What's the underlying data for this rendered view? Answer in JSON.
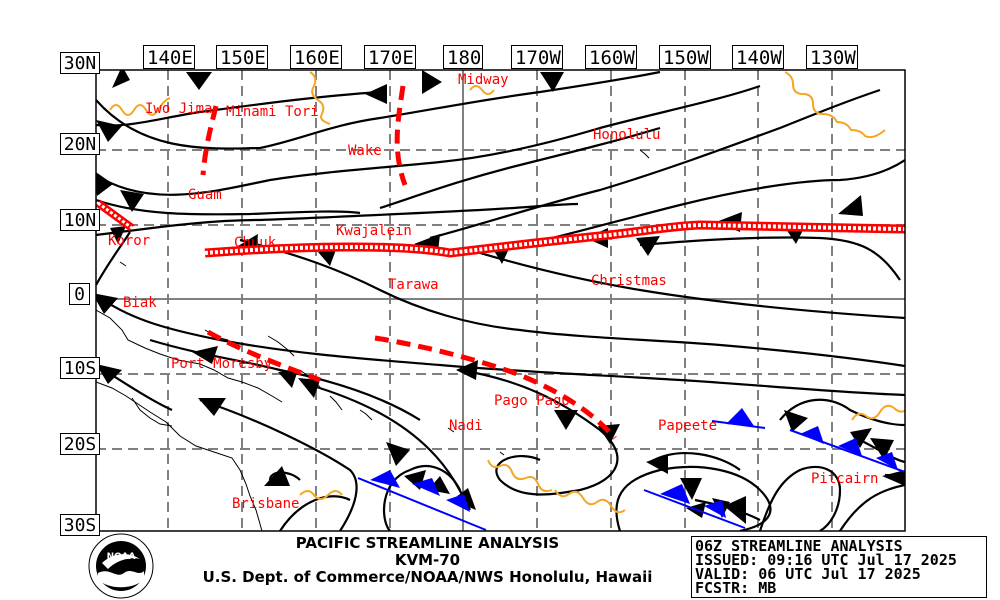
{
  "chart_title": "PACIFIC STREAMLINE ANALYSIS",
  "station": "KVM-70",
  "agency": "U.S. Dept. of Commerce/NOAA/NWS Honolulu, Hawaii",
  "logo": {
    "text": "NOAA",
    "ring_text": "NATIONAL OCEANIC AND ATMOSPHERIC ADMINISTRATION · U.S. DEPARTMENT OF COMMERCE"
  },
  "info": {
    "analysis": "06Z STREAMLINE ANALYSIS",
    "issued": "ISSUED: 09:16 UTC Jul 17 2025",
    "valid": "VALID: 06 UTC Jul 17 2025",
    "forecaster": "FCSTR: MB"
  },
  "longitude_labels": [
    "140E",
    "150E",
    "160E",
    "170E",
    "180",
    "170W",
    "160W",
    "150W",
    "140W",
    "130W"
  ],
  "latitude_labels": [
    "30N",
    "20N",
    "10N",
    "0",
    "10S",
    "20S",
    "30S"
  ],
  "places": [
    "Iwo Jima",
    "Minami Tori",
    "Midway",
    "Wake",
    "Honolulu",
    "Guam",
    "Koror",
    "Chuuk",
    "Kwajalein",
    "Tarawa",
    "Christmas",
    "Biak",
    "Port Moresby",
    "Pago Pago",
    "Papeete",
    "Nadi",
    "Pitcairn",
    "Brisbane"
  ],
  "colors": {
    "streamline": "#000000",
    "trough": "#ff0000",
    "itcz": "#ff0000",
    "ridge": "#f5a623",
    "shear_line": "#0000ff",
    "grid": "#808080",
    "place_label": "#ff0000",
    "coastline": "#000000"
  },
  "features": {
    "itcz": "double red band along about 5N-9N",
    "troughs": [
      "near 140E-145E north of Guam",
      "near 170E north of Wake",
      "10S-20S from 160W to 180",
      "Port Moresby area"
    ],
    "ridges": [
      "near 30N",
      "20S-25S"
    ],
    "shear_lines": [
      "near 20S-25S",
      "near 20S 130W-140W"
    ]
  }
}
